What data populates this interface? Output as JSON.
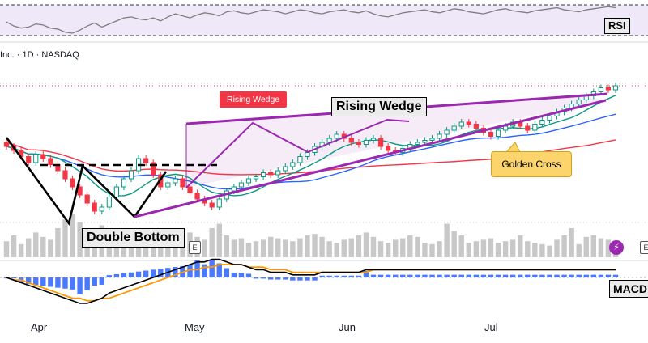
{
  "header": {
    "symbol_text": "Inc. · 1D · NASDAQ"
  },
  "badges": {
    "earnings_label": "E",
    "dividend_icon": "lightning-bolt-icon",
    "right_badge_label": "E"
  },
  "annotations": {
    "double_bottom": "Double Bottom",
    "rising_wedge": "Rising Wedge",
    "rising_wedge_tag": "Rising Wedge",
    "golden_cross": "Golden Cross"
  },
  "panels": {
    "rsi_label": "RSI",
    "macd_label": "MACD"
  },
  "colors": {
    "bull": "#089981",
    "bear": "#f23645",
    "wedge": "#9c27b0",
    "ma_short": "#089981",
    "ma_mid": "#2962ff",
    "ma_long": "#f23645",
    "macd_line": "#000000",
    "signal_line": "#ff9800",
    "histogram": "#2962ff",
    "rsi_line": "#7e7e7e",
    "golden_cross_bg": "#fbd46b"
  },
  "chart_data": [
    {
      "type": "candlestick",
      "x_labels": [
        "Apr",
        "May",
        "Jun",
        "Jul"
      ],
      "series": [
        {
          "name": "price",
          "values": [
            78,
            76,
            73,
            70,
            74,
            72,
            69,
            66,
            62,
            58,
            54,
            50,
            46,
            48,
            53,
            58,
            62,
            66,
            72,
            70,
            64,
            58,
            60,
            62,
            58,
            55,
            52,
            50,
            48,
            52,
            56,
            58,
            60,
            62,
            63,
            65,
            64,
            66,
            68,
            70,
            73,
            75,
            78,
            80,
            82,
            84,
            82,
            80,
            79,
            81,
            82,
            78,
            76,
            75,
            77,
            79,
            80,
            81,
            82,
            84,
            86,
            88,
            90,
            89,
            87,
            85,
            83,
            86,
            88,
            90,
            88,
            86,
            89,
            91,
            93,
            95,
            97,
            99,
            101,
            103,
            105,
            107,
            106,
            108
          ]
        }
      ],
      "moving_averages": [
        "short",
        "mid",
        "long"
      ],
      "grid": false
    },
    {
      "type": "bar",
      "name": "volume",
      "values": [
        22,
        30,
        18,
        26,
        34,
        28,
        24,
        40,
        52,
        60,
        48,
        36,
        30,
        44,
        38,
        26,
        22,
        30,
        28,
        24,
        34,
        20,
        26,
        22,
        30,
        34,
        28,
        24,
        40,
        46,
        30,
        24,
        26,
        20,
        22,
        24,
        28,
        26,
        24,
        22,
        26,
        30,
        32,
        28,
        22,
        20,
        24,
        26,
        30,
        34,
        28,
        22,
        20,
        24,
        26,
        30,
        28,
        20,
        18,
        22,
        46,
        36,
        30,
        20,
        22,
        24,
        26,
        20,
        22,
        24,
        30,
        22,
        20,
        18,
        16,
        24,
        30,
        40,
        18,
        28,
        30,
        26,
        24,
        22
      ]
    },
    {
      "type": "line",
      "name": "RSI",
      "values": [
        50,
        42,
        38,
        40,
        46,
        44,
        38,
        36,
        30,
        28,
        34,
        42,
        48,
        40,
        46,
        52,
        58,
        60,
        56,
        54,
        58,
        52,
        60,
        66,
        62,
        58,
        64,
        68,
        66,
        62,
        70,
        72,
        68,
        66,
        70,
        74,
        72,
        70,
        66,
        70,
        74,
        72,
        68,
        66,
        70,
        72,
        74,
        70,
        68,
        72,
        66,
        62,
        60,
        64,
        68,
        70,
        72,
        74,
        70,
        68,
        72,
        76,
        74,
        70,
        68,
        66,
        70,
        74,
        76,
        72,
        70,
        68,
        72,
        74,
        76,
        78,
        74,
        72,
        70,
        74,
        76,
        78,
        80,
        78
      ]
    },
    {
      "type": "line",
      "name": "MACD",
      "series": [
        {
          "name": "MACD",
          "values": [
            0,
            -1,
            -2,
            -3,
            -4,
            -5,
            -6,
            -7,
            -8,
            -9,
            -10,
            -10,
            -9,
            -8,
            -6,
            -5,
            -4,
            -3,
            -2,
            -1,
            0,
            1,
            2,
            3,
            4,
            5,
            6,
            6,
            7,
            7,
            6,
            5,
            5,
            4,
            3,
            3,
            2,
            2,
            2,
            1,
            1,
            1,
            1,
            2,
            2,
            2,
            2,
            2,
            2,
            3,
            3,
            3,
            3,
            3,
            3,
            3,
            3,
            3,
            3,
            3,
            3,
            3,
            3,
            3,
            3,
            3,
            3,
            3,
            3,
            3,
            3,
            3,
            3,
            3,
            3,
            3,
            3,
            3,
            3,
            3,
            3,
            3,
            3,
            3
          ]
        },
        {
          "name": "Signal",
          "values": [
            0,
            -1,
            -1,
            -2,
            -3,
            -4,
            -5,
            -6,
            -7,
            -8,
            -8,
            -9,
            -9,
            -8,
            -8,
            -7,
            -6,
            -5,
            -4,
            -3,
            -2,
            -1,
            0,
            1,
            2,
            3,
            3,
            4,
            4,
            5,
            5,
            5,
            5,
            4,
            4,
            4,
            3,
            3,
            3,
            2,
            2,
            2,
            2,
            2,
            2,
            2,
            2,
            2,
            2,
            2,
            3,
            3,
            3,
            3,
            3,
            3,
            3,
            3,
            3,
            3,
            3,
            3,
            3,
            3,
            3,
            3,
            3,
            3,
            3,
            3,
            3,
            3,
            3,
            3,
            3,
            3,
            3,
            3,
            3,
            3,
            3,
            3,
            3,
            3
          ]
        }
      ]
    }
  ]
}
